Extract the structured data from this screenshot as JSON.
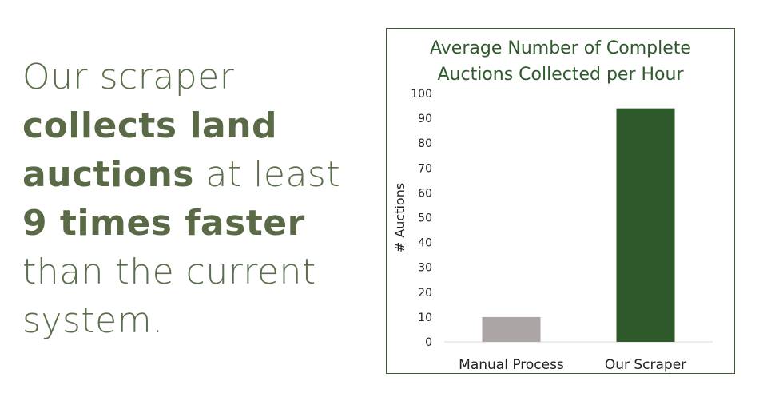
{
  "headline": {
    "l1": "Our scraper",
    "l2": "collects land",
    "l3a": "auctions",
    "l3b": " at least",
    "l4": "9 times faster",
    "l5": "than the current",
    "l6": "system."
  },
  "colors": {
    "text": "#5b6e4c",
    "title": "#2f5a2c",
    "manual_bar": "#aba6a5",
    "scraper_bar": "#2e5a2b"
  },
  "chart_data": {
    "type": "bar",
    "title_line1": "Average Number of Complete",
    "title_line2": "Auctions Collected per Hour",
    "categories": [
      "Manual Process",
      "Our Scraper"
    ],
    "values": [
      10,
      94
    ],
    "ylabel": "# Auctions",
    "xlabel": "",
    "ylim": [
      0,
      100
    ],
    "yticks": [
      0,
      10,
      20,
      30,
      40,
      50,
      60,
      70,
      80,
      90,
      100
    ],
    "grid": false
  }
}
